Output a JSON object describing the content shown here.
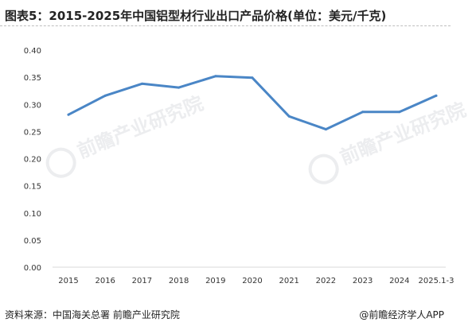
{
  "title": "图表5：2015-2025年中国铝型材行业出口产品价格(单位：美元/千克)",
  "footer": {
    "source": "资料来源：中国海关总署 前瞻产业研究院",
    "brand": "@前瞻经济学人APP"
  },
  "watermark": {
    "text": "前瞻产业研究院"
  },
  "colors": {
    "line": "#4a86c6",
    "grid": "#d9d9d9"
  },
  "chart_data": {
    "type": "line",
    "categories": [
      "2015",
      "2016",
      "2017",
      "2018",
      "2019",
      "2020",
      "2021",
      "2022",
      "2023",
      "2024",
      "2025.1-3"
    ],
    "series": [
      {
        "values": [
          0.281,
          0.316,
          0.338,
          0.331,
          0.352,
          0.349,
          0.278,
          0.254,
          0.286,
          0.286,
          0.316
        ]
      }
    ],
    "title": "图表5：2015-2025年中国铝型材行业出口产品价格(单位：美元/千克)",
    "xlabel": "",
    "ylabel": "",
    "ylim": [
      0,
      0.4
    ],
    "yticks": [
      "0.00",
      "0.05",
      "0.10",
      "0.15",
      "0.20",
      "0.25",
      "0.30",
      "0.35",
      "0.40"
    ],
    "grid": false,
    "legend": "none"
  }
}
